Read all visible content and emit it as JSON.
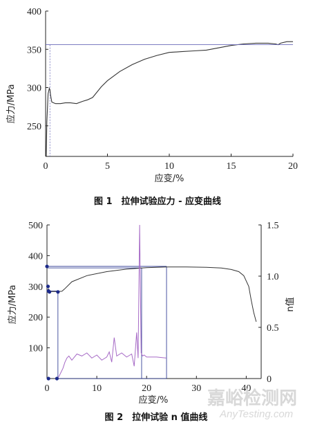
{
  "chart_data": [
    {
      "type": "line",
      "caption": "图 1　拉伸试验应力 - 应变曲线",
      "xlabel": "应变/%",
      "ylabel": "应力/MPa",
      "xlim": [
        0,
        20
      ],
      "ylim": [
        210,
        400
      ],
      "xticks": [
        "0",
        "5",
        "10",
        "15",
        "20"
      ],
      "yticks": [
        "250",
        "300",
        "350",
        "400"
      ],
      "series": [
        {
          "color": "#333333",
          "x": [
            0.05,
            0.1,
            0.2,
            0.3,
            0.35,
            0.4,
            0.5,
            0.8,
            1.2,
            1.6,
            2.0,
            2.5,
            3.0,
            3.4,
            3.8,
            4.0,
            4.5,
            5.0,
            6.0,
            7.0,
            8.0,
            9.0,
            10.0,
            11.0,
            12.0,
            13.0,
            14.0,
            15.0,
            16.0,
            17.0,
            18.0,
            18.6,
            18.8,
            19.0,
            19.5,
            20.0
          ],
          "y": [
            210,
            255,
            292,
            299,
            297,
            290,
            281,
            279,
            279,
            280,
            280,
            279,
            282,
            284,
            287,
            291,
            301,
            309,
            321,
            330,
            337,
            342,
            346,
            347,
            348,
            349,
            352,
            355,
            357,
            358,
            358,
            357,
            356,
            358,
            360,
            360
          ]
        },
        {
          "color": "#6a6ab8",
          "x": [
            0,
            20
          ],
          "y": [
            356,
            356
          ]
        }
      ]
    },
    {
      "type": "line",
      "caption": "图 2　拉伸试验 n 值曲线",
      "xlabel": "应变/%",
      "ylabel": "应力/MPa",
      "ylabel_right": "n值",
      "xlim": [
        0,
        43
      ],
      "ylim": [
        0,
        500
      ],
      "y2lim": [
        0,
        1.5
      ],
      "xticks": [
        "0",
        "10",
        "20",
        "30",
        "40"
      ],
      "yticks": [
        "100",
        "200",
        "300",
        "400",
        "500"
      ],
      "y2ticks": [
        "0",
        "0.5",
        "1.0",
        "1.5"
      ],
      "series": [
        {
          "color": "#333333",
          "axis": "left",
          "x": [
            0.1,
            0.3,
            0.5,
            1.0,
            2.0,
            3.0,
            3.5,
            5.0,
            8.0,
            12.0,
            16.0,
            20.0,
            24.0,
            28.0,
            32.0,
            35.0,
            37.0,
            38.5,
            39.5,
            40.5,
            41.0,
            41.5,
            42.0
          ],
          "y": [
            280,
            292,
            284,
            283,
            283,
            284,
            291,
            315,
            335,
            348,
            356,
            361,
            363,
            363,
            362,
            360,
            355,
            348,
            335,
            300,
            255,
            215,
            185
          ]
        },
        {
          "color": "#a66ac6",
          "axis": "right",
          "x": [
            2.0,
            2.4,
            2.8,
            3.2,
            3.6,
            4.0,
            4.4,
            5.0,
            6.0,
            7.0,
            8.0,
            9.0,
            10.0,
            11.0,
            12.0,
            12.5,
            13.0,
            13.5,
            14.0,
            15.0,
            16.0,
            17.0,
            17.5,
            18.0,
            18.3,
            18.6,
            18.9,
            19.2,
            19.5,
            20.0,
            22.0,
            24.0
          ],
          "y": [
            0.0,
            0.02,
            0.06,
            0.1,
            0.16,
            0.2,
            0.22,
            0.18,
            0.24,
            0.22,
            0.25,
            0.2,
            0.23,
            0.18,
            0.21,
            0.26,
            0.16,
            0.4,
            0.22,
            0.25,
            0.21,
            0.24,
            0.12,
            0.45,
            0.2,
            1.5,
            0.25,
            0.22,
            0.23,
            0.21,
            0.21,
            0.2
          ]
        }
      ],
      "markers": {
        "color": "#1c2a8a",
        "points": [
          {
            "x": 0,
            "y": 365
          },
          {
            "x": 0.2,
            "y": 300
          },
          {
            "x": 0.3,
            "y": 285
          },
          {
            "x": 0.5,
            "y": 282
          },
          {
            "x": 2.2,
            "y": 282
          },
          {
            "x": 0.3,
            "y": 0
          },
          {
            "x": 2.0,
            "y": 0
          }
        ],
        "guides": [
          {
            "x1": 0,
            "y1": 365,
            "x2": 24,
            "y2": 365
          },
          {
            "x1": 0,
            "y1": 360,
            "x2": 19,
            "y2": 360
          },
          {
            "x1": 0.3,
            "y1": 285,
            "x2": 2.2,
            "y2": 285
          },
          {
            "x1": 2.2,
            "y1": 0,
            "x2": 24,
            "y2": 0
          },
          {
            "x1": 24,
            "y1": 0,
            "x2": 24,
            "y2": 365
          },
          {
            "x1": 19,
            "y1": 0,
            "x2": 19,
            "y2": 360
          },
          {
            "x1": 2.2,
            "y1": 0,
            "x2": 2.2,
            "y2": 282
          }
        ]
      }
    }
  ],
  "watermark": {
    "line1": "嘉峪检测网",
    "line2": "AnyTesting.com"
  }
}
